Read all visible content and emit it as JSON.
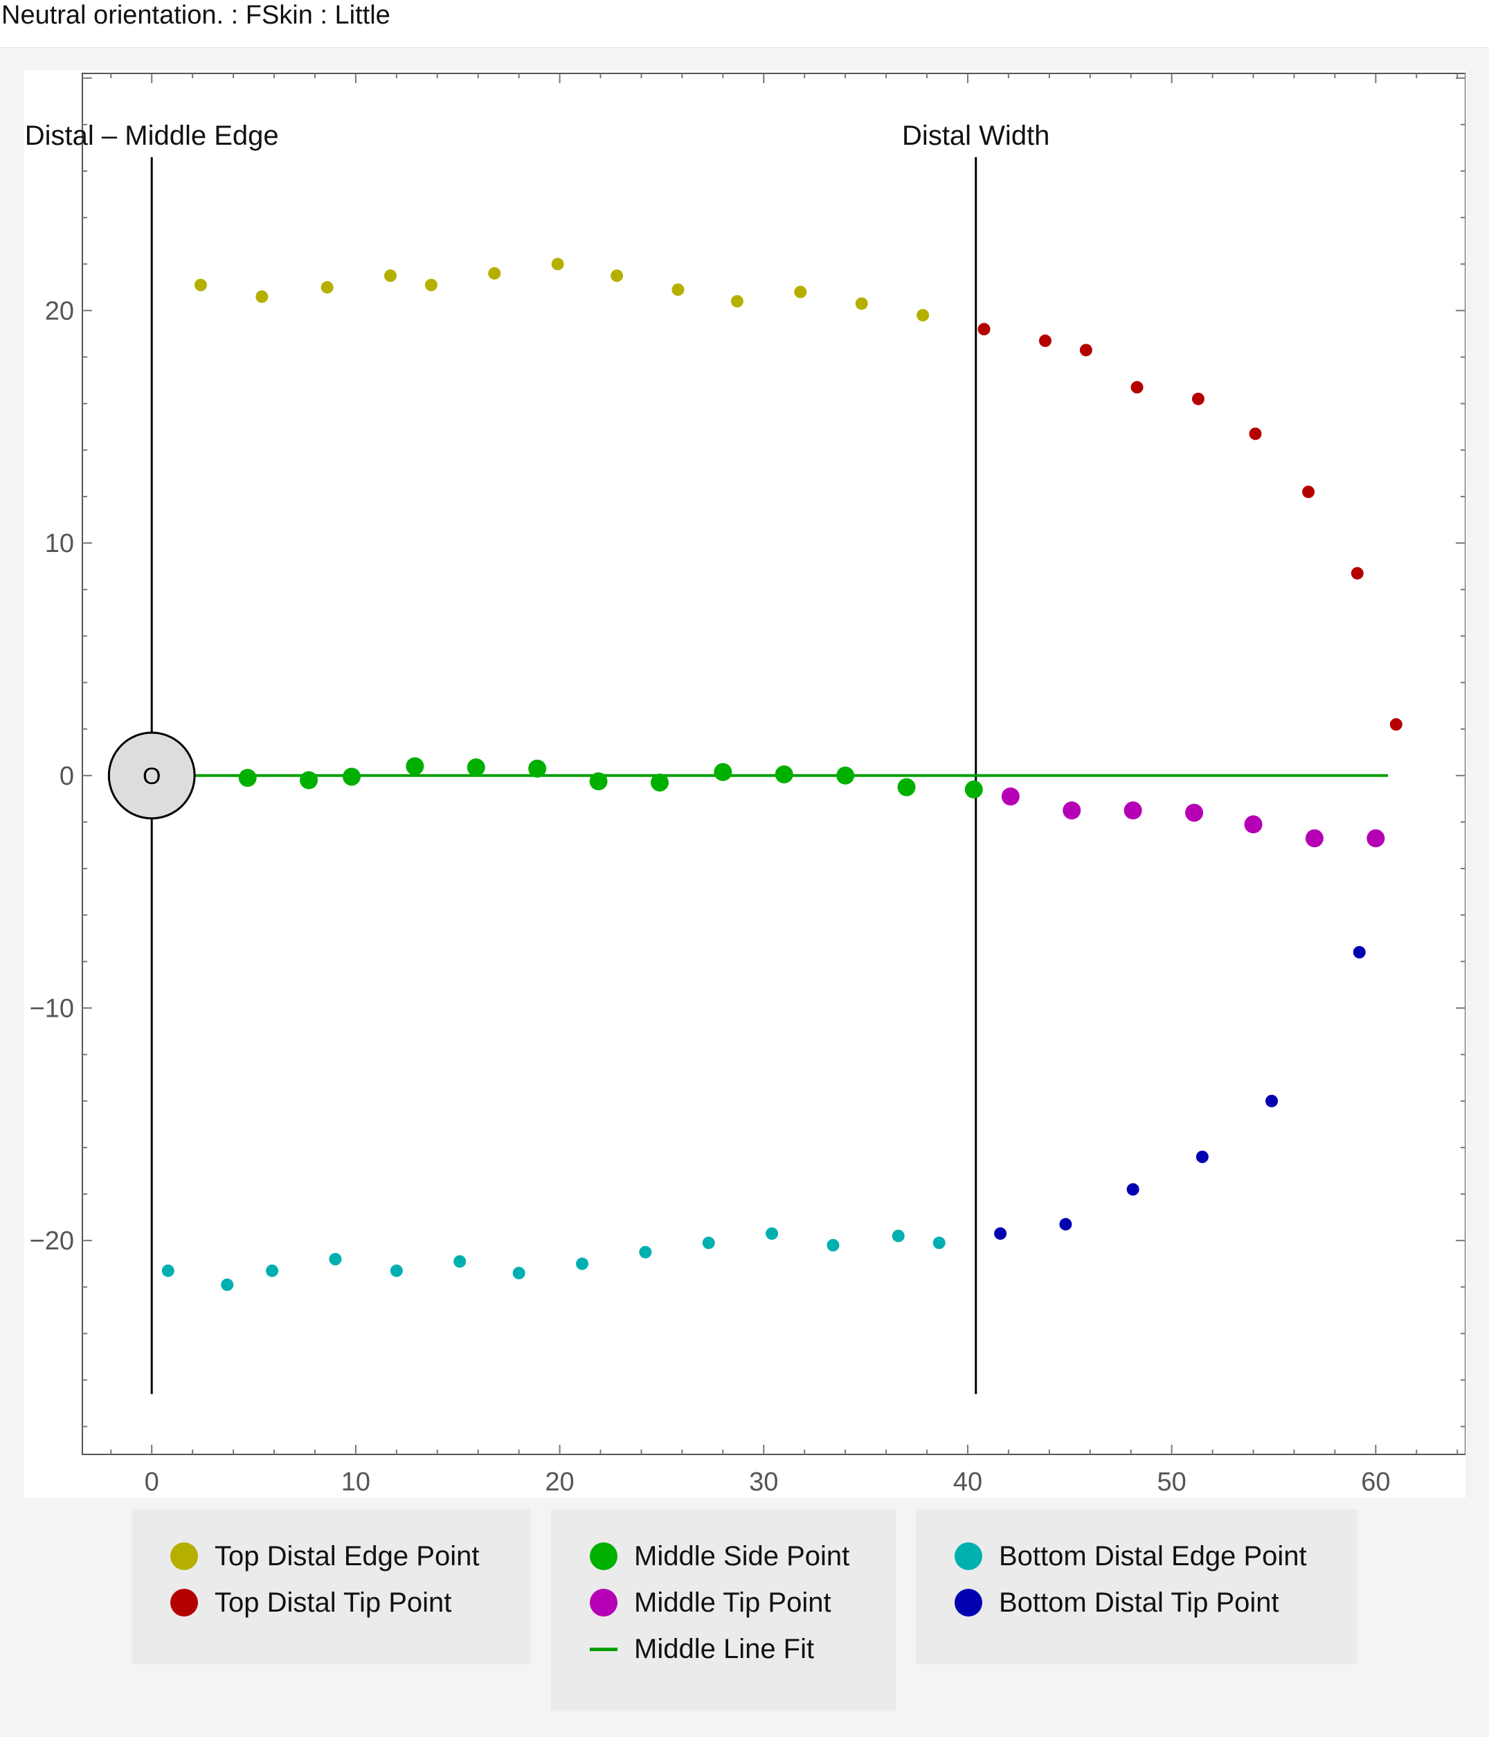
{
  "page": {
    "title": "Neutral orientation. : FSkin : Little"
  },
  "colors": {
    "top_edge": "#b5b000",
    "top_tip": "#b50000",
    "middle_side": "#00b000",
    "middle_tip": "#b500b5",
    "middle_line": "#00a000",
    "bottom_edge": "#00b0b0",
    "bottom_tip": "#0000b0",
    "frame": "#555555",
    "origin_fill": "#dddddd"
  },
  "chart_data": {
    "type": "scatter",
    "xlim": [
      -3.4,
      64.4
    ],
    "ylim": [
      -29.2,
      30.2
    ],
    "x_ticks": [
      {
        "value": 0,
        "label": "0"
      },
      {
        "value": 10,
        "label": "10"
      },
      {
        "value": 20,
        "label": "20"
      },
      {
        "value": 30,
        "label": "30"
      },
      {
        "value": 40,
        "label": "40"
      },
      {
        "value": 50,
        "label": "50"
      },
      {
        "value": 60,
        "label": "60"
      }
    ],
    "y_ticks": [
      {
        "value": -20,
        "label": "−20"
      },
      {
        "value": -10,
        "label": "−10"
      },
      {
        "value": 0,
        "label": "0"
      },
      {
        "value": 10,
        "label": "10"
      },
      {
        "value": 20,
        "label": "20"
      }
    ],
    "grid": false,
    "legend_position": "bottom",
    "reference_lines": [
      {
        "label": "Distal – Middle Edge",
        "x": 0,
        "y_range": [
          -26.6,
          26.6
        ]
      },
      {
        "label": "Distal Width",
        "x": 40.4,
        "y_range": [
          -26.6,
          26.6
        ]
      }
    ],
    "origin_marker": {
      "label": "O",
      "x": 0,
      "y": 0,
      "radius": 2.1
    },
    "fit_line": {
      "name": "Middle Line Fit",
      "x": [
        0,
        60.6
      ],
      "y": [
        0,
        0
      ]
    },
    "series": [
      {
        "name": "Top Distal Edge Point",
        "marker": "small",
        "color_key": "top_edge",
        "points": [
          [
            2.4,
            21.1
          ],
          [
            5.4,
            20.6
          ],
          [
            8.6,
            21.0
          ],
          [
            11.7,
            21.5
          ],
          [
            13.7,
            21.1
          ],
          [
            16.8,
            21.6
          ],
          [
            19.9,
            22.0
          ],
          [
            22.8,
            21.5
          ],
          [
            25.8,
            20.9
          ],
          [
            28.7,
            20.4
          ],
          [
            31.8,
            20.8
          ],
          [
            34.8,
            20.3
          ],
          [
            37.8,
            19.8
          ]
        ]
      },
      {
        "name": "Top Distal Tip Point",
        "marker": "small",
        "color_key": "top_tip",
        "points": [
          [
            40.8,
            19.2
          ],
          [
            43.8,
            18.7
          ],
          [
            45.8,
            18.3
          ],
          [
            48.3,
            16.7
          ],
          [
            51.3,
            16.2
          ],
          [
            54.1,
            14.7
          ],
          [
            56.7,
            12.2
          ],
          [
            59.1,
            8.7
          ],
          [
            61.0,
            2.2
          ]
        ]
      },
      {
        "name": "Middle Side Point",
        "marker": "large",
        "color_key": "middle_side",
        "points": [
          [
            4.7,
            -0.1
          ],
          [
            7.7,
            -0.2
          ],
          [
            9.8,
            -0.05
          ],
          [
            12.9,
            0.4
          ],
          [
            15.9,
            0.35
          ],
          [
            18.9,
            0.3
          ],
          [
            21.9,
            -0.25
          ],
          [
            24.9,
            -0.3
          ],
          [
            28.0,
            0.15
          ],
          [
            31.0,
            0.05
          ],
          [
            34.0,
            0.0
          ],
          [
            37.0,
            -0.5
          ],
          [
            40.3,
            -0.6
          ]
        ]
      },
      {
        "name": "Middle Tip Point",
        "marker": "large",
        "color_key": "middle_tip",
        "points": [
          [
            42.1,
            -0.9
          ],
          [
            45.1,
            -1.5
          ],
          [
            48.1,
            -1.5
          ],
          [
            51.1,
            -1.6
          ],
          [
            54.0,
            -2.1
          ],
          [
            57.0,
            -2.7
          ],
          [
            60.0,
            -2.7
          ]
        ]
      },
      {
        "name": "Bottom Distal Edge Point",
        "marker": "small",
        "color_key": "bottom_edge",
        "points": [
          [
            0.8,
            -21.3
          ],
          [
            3.7,
            -21.9
          ],
          [
            5.9,
            -21.3
          ],
          [
            9.0,
            -20.8
          ],
          [
            12.0,
            -21.3
          ],
          [
            15.1,
            -20.9
          ],
          [
            18.0,
            -21.4
          ],
          [
            21.1,
            -21.0
          ],
          [
            24.2,
            -20.5
          ],
          [
            27.3,
            -20.1
          ],
          [
            30.4,
            -19.7
          ],
          [
            33.4,
            -20.2
          ],
          [
            36.6,
            -19.8
          ],
          [
            38.6,
            -20.1
          ]
        ]
      },
      {
        "name": "Bottom Distal Tip Point",
        "marker": "small",
        "color_key": "bottom_tip",
        "points": [
          [
            41.6,
            -19.7
          ],
          [
            44.8,
            -19.3
          ],
          [
            48.1,
            -17.8
          ],
          [
            51.5,
            -16.4
          ],
          [
            54.9,
            -14.0
          ],
          [
            59.2,
            -7.6
          ]
        ]
      }
    ]
  },
  "legend": {
    "groups": [
      {
        "items": [
          {
            "label": "Top Distal Edge Point",
            "kind": "dot",
            "color_key": "top_edge"
          },
          {
            "label": "Top Distal Tip Point",
            "kind": "dot",
            "color_key": "top_tip"
          }
        ]
      },
      {
        "items": [
          {
            "label": "Middle Side Point",
            "kind": "dot",
            "color_key": "middle_side"
          },
          {
            "label": "Middle Tip Point",
            "kind": "dot",
            "color_key": "middle_tip"
          },
          {
            "label": "Middle Line Fit",
            "kind": "line",
            "color_key": "middle_line"
          }
        ]
      },
      {
        "items": [
          {
            "label": "Bottom Distal Edge Point",
            "kind": "dot",
            "color_key": "bottom_edge"
          },
          {
            "label": "Bottom Distal Tip Point",
            "kind": "dot",
            "color_key": "bottom_tip"
          }
        ]
      }
    ]
  }
}
